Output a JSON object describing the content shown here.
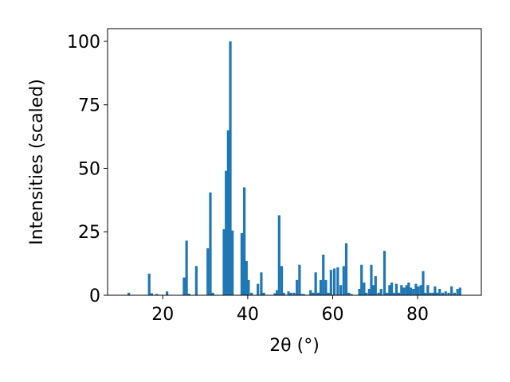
{
  "chart_data": {
    "type": "bar",
    "xlabel": "2θ (°)",
    "ylabel": "Intensities (scaled)",
    "xlim": [
      7,
      95
    ],
    "ylim": [
      0,
      105
    ],
    "xticks": [
      20,
      40,
      60,
      80
    ],
    "yticks": [
      0,
      25,
      50,
      75,
      100
    ],
    "bar_width": 0.6,
    "bar_color": "#1f77b4",
    "grid": false,
    "legend": "none",
    "x": [
      12.0,
      16.8,
      17.4,
      18.6,
      21.0,
      25.0,
      25.6,
      26.2,
      27.9,
      30.6,
      31.2,
      31.8,
      34.4,
      34.9,
      35.4,
      35.9,
      36.4,
      38.6,
      39.2,
      39.7,
      40.2,
      40.9,
      42.4,
      43.2,
      43.8,
      46.4,
      46.9,
      47.4,
      48.0,
      48.5,
      49.6,
      50.2,
      50.9,
      51.6,
      52.2,
      52.8,
      53.2,
      54.8,
      55.4,
      56.0,
      56.6,
      57.2,
      57.8,
      58.4,
      59.0,
      59.6,
      60.4,
      61.2,
      61.9,
      62.6,
      63.2,
      63.8,
      64.4,
      66.3,
      66.8,
      67.4,
      67.9,
      68.6,
      69.1,
      69.6,
      70.1,
      70.8,
      71.4,
      72.2,
      72.8,
      73.4,
      73.9,
      74.4,
      75.0,
      75.6,
      76.2,
      76.8,
      77.4,
      77.9,
      78.4,
      79.0,
      79.6,
      80.2,
      80.8,
      81.3,
      81.8,
      82.4,
      83.0,
      83.6,
      84.1,
      84.6,
      85.2,
      85.9,
      86.6,
      87.3,
      88.0,
      88.7,
      89.4,
      90.0
    ],
    "values": [
      1.0,
      8.5,
      0.8,
      0.5,
      1.5,
      7.0,
      21.5,
      0.6,
      11.5,
      18.5,
      40.5,
      1.0,
      26.0,
      49.0,
      65.0,
      100.0,
      25.5,
      24.5,
      42.5,
      13.5,
      6.0,
      1.0,
      4.5,
      9.0,
      1.0,
      0.8,
      2.0,
      31.5,
      11.5,
      1.0,
      1.5,
      1.0,
      1.0,
      6.0,
      12.0,
      0.5,
      0.5,
      2.0,
      1.0,
      9.0,
      1.0,
      6.0,
      16.0,
      6.0,
      1.0,
      10.0,
      10.5,
      11.0,
      4.0,
      11.5,
      20.5,
      1.0,
      0.5,
      2.5,
      12.0,
      5.0,
      1.0,
      2.5,
      12.0,
      4.0,
      7.5,
      1.0,
      2.5,
      17.5,
      1.0,
      4.0,
      5.0,
      1.0,
      4.5,
      1.0,
      4.0,
      3.0,
      4.0,
      5.0,
      3.0,
      2.5,
      4.5,
      3.5,
      4.0,
      9.5,
      1.0,
      4.0,
      1.0,
      1.0,
      3.5,
      1.0,
      2.5,
      1.0,
      1.5,
      1.0,
      3.5,
      1.0,
      2.5,
      3.0
    ]
  }
}
